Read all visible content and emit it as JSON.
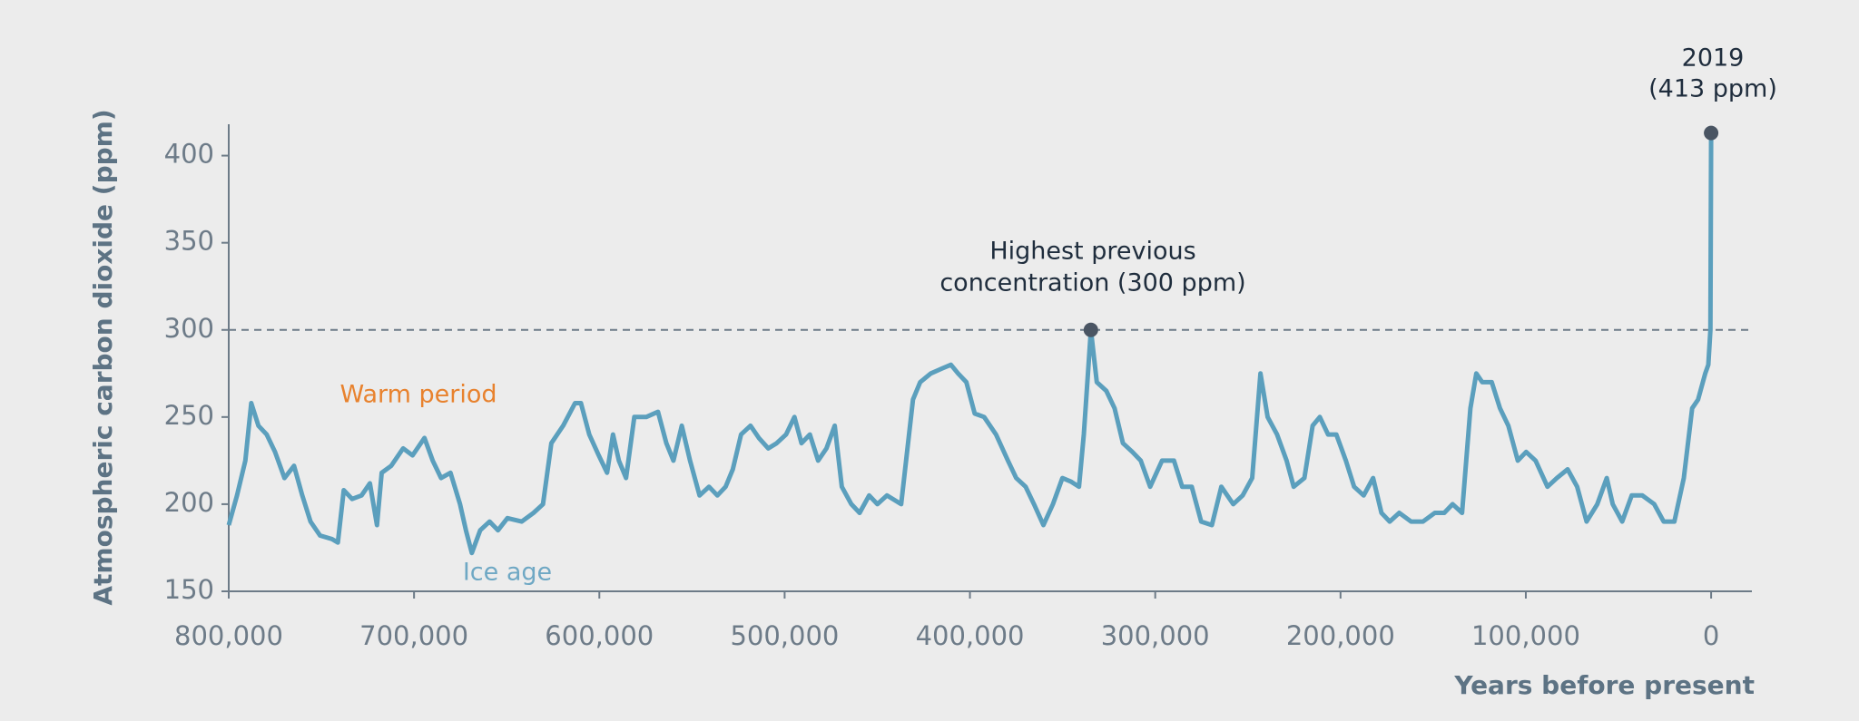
{
  "chart_data": {
    "type": "line",
    "y_label": "Atmospheric carbon dioxide (ppm)",
    "x_label": "Years before present",
    "color": "#5b9fbd",
    "xlim": [
      800000,
      -22000
    ],
    "ylim": [
      150,
      418
    ],
    "xticks": [
      {
        "value": 800000,
        "label": "800,000"
      },
      {
        "value": 700000,
        "label": "700,000"
      },
      {
        "value": 600000,
        "label": "600,000"
      },
      {
        "value": 500000,
        "label": "500,000"
      },
      {
        "value": 400000,
        "label": "400,000"
      },
      {
        "value": 300000,
        "label": "300,000"
      },
      {
        "value": 200000,
        "label": "200,000"
      },
      {
        "value": 100000,
        "label": "100,000"
      },
      0
    ],
    "yticks": [
      150,
      200,
      250,
      300,
      350,
      400
    ],
    "reference_line": 300,
    "x": [
      800000,
      795520,
      791040,
      787840,
      784000,
      779520,
      775040,
      769920,
      764800,
      760320,
      755840,
      750720,
      744320,
      741120,
      737920,
      733440,
      728320,
      723840,
      720000,
      717440,
      712320,
      705920,
      700800,
      694400,
      689920,
      685440,
      680320,
      675200,
      672000,
      668800,
      664320,
      659200,
      654720,
      649600,
      641920,
      635520,
      630400,
      625920,
      619520,
      613120,
      609920,
      605440,
      600320,
      595840,
      592640,
      589440,
      585600,
      581120,
      574720,
      568320,
      563840,
      560000,
      555520,
      551040,
      545920,
      540800,
      536320,
      531840,
      528000,
      523520,
      518400,
      513920,
      508800,
      504320,
      499200,
      494720,
      490880,
      486400,
      481920,
      477440,
      472960,
      469120,
      464000,
      459520,
      454400,
      449920,
      444800,
      437120,
      430720,
      426880,
      421120,
      414720,
      410240,
      406400,
      401920,
      397440,
      392320,
      385920,
      379520,
      375040,
      369920,
      365440,
      360320,
      355200,
      350080,
      345600,
      341120,
      338560,
      334720,
      331520,
      326400,
      321920,
      317440,
      312320,
      307840,
      302720,
      296320,
      289920,
      285440,
      280320,
      275200,
      269440,
      264320,
      257920,
      252800,
      247680,
      243200,
      239360,
      234240,
      229120,
      225280,
      219520,
      215040,
      211200,
      206720,
      202240,
      197120,
      192640,
      187520,
      182400,
      177920,
      173440,
      168320,
      161920,
      155520,
      149120,
      144000,
      139520,
      134400,
      129920,
      126720,
      123520,
      118400,
      113920,
      109440,
      104320,
      99840,
      94720,
      88320,
      83200,
      77440,
      72320,
      67200,
      61440,
      56320,
      53120,
      48000,
      42880,
      37120,
      30720,
      25600,
      19840,
      14720,
      10240,
      7040,
      3200,
      1500,
      400,
      0
    ],
    "values": [
      188,
      205,
      225,
      258,
      245,
      240,
      230,
      215,
      222,
      205,
      190,
      182,
      180,
      178,
      208,
      203,
      205,
      212,
      188,
      218,
      222,
      232,
      228,
      238,
      225,
      215,
      218,
      200,
      185,
      172,
      185,
      190,
      185,
      192,
      190,
      195,
      200,
      235,
      245,
      258,
      258,
      240,
      228,
      218,
      240,
      225,
      215,
      250,
      250,
      253,
      235,
      225,
      245,
      225,
      205,
      210,
      205,
      210,
      220,
      240,
      245,
      238,
      232,
      235,
      240,
      250,
      235,
      240,
      225,
      232,
      245,
      210,
      200,
      195,
      205,
      200,
      205,
      200,
      260,
      270,
      275,
      278,
      280,
      275,
      270,
      252,
      250,
      240,
      225,
      215,
      210,
      200,
      188,
      200,
      215,
      213,
      210,
      240,
      300,
      270,
      265,
      255,
      235,
      230,
      225,
      210,
      225,
      225,
      210,
      210,
      190,
      188,
      210,
      200,
      205,
      215,
      275,
      250,
      240,
      225,
      210,
      215,
      245,
      250,
      240,
      240,
      225,
      210,
      205,
      215,
      195,
      190,
      195,
      190,
      190,
      195,
      195,
      200,
      195,
      255,
      275,
      270,
      270,
      255,
      245,
      225,
      230,
      225,
      210,
      215,
      220,
      210,
      190,
      200,
      215,
      200,
      190,
      205,
      205,
      200,
      190,
      190,
      215,
      255,
      260,
      275,
      280,
      300,
      413
    ],
    "highlights": [
      {
        "x": 334720,
        "y": 300,
        "label": [
          "Highest previous",
          "concentration (300 ppm)"
        ]
      },
      {
        "x": 0,
        "y": 413,
        "label": [
          "2019",
          "(413 ppm)"
        ]
      }
    ],
    "annotations": [
      {
        "text": "Warm period",
        "color": "#e8822e"
      },
      {
        "text": "Ice age",
        "color": "#6fa8c4"
      }
    ]
  }
}
